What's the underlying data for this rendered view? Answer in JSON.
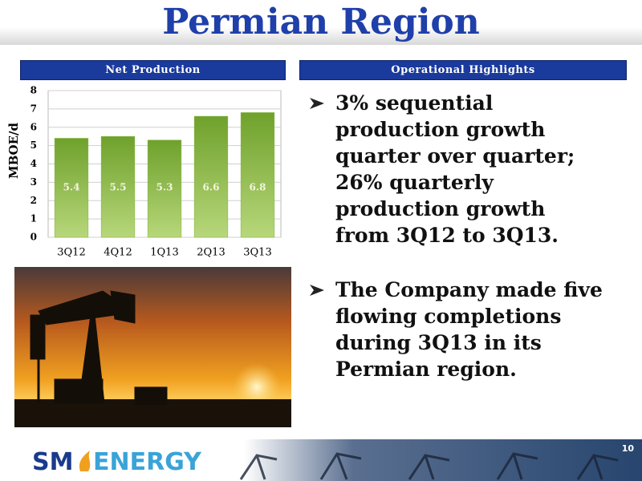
{
  "header": {
    "title": "Permian Region"
  },
  "chart_data": {
    "type": "bar",
    "title": "Net Production",
    "y_label": "MBOE/d",
    "categories": [
      "3Q12",
      "4Q12",
      "1Q13",
      "2Q13",
      "3Q13"
    ],
    "values": [
      5.4,
      5.5,
      5.3,
      6.6,
      6.8
    ],
    "color": "#7fb13a",
    "ylim": [
      0,
      8
    ],
    "yticks": [
      0,
      1,
      2,
      3,
      4,
      5,
      6,
      7,
      8
    ],
    "grid": true
  },
  "highlights": {
    "title": "Operational Highlights",
    "items": [
      "3% sequential production growth quarter over quarter; 26% quarterly production growth from 3Q12 to 3Q13.",
      "The Company made five flowing completions during 3Q13 in its Permian region."
    ]
  },
  "footer": {
    "logo": [
      "SM",
      "ENERGY"
    ],
    "page_number": "10"
  }
}
